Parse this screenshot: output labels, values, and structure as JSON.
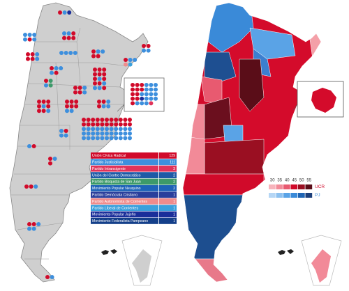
{
  "legend": {
    "parties": [
      {
        "name": "Unión Cívica Radical",
        "seats": 129,
        "color": "#d10a2a"
      },
      {
        "name": "Partido Justicialista",
        "seats": 111,
        "color": "#3d8fdd"
      },
      {
        "name": "Partido Intransigente",
        "seats": 3,
        "color": "#e0335a"
      },
      {
        "name": "Unión del Centro Democrático",
        "seats": 2,
        "color": "#1f5aa6"
      },
      {
        "name": "Partido Bloquista de San Juan",
        "seats": 2,
        "color": "#3d9a6a"
      },
      {
        "name": "Movimiento Popular Neuquino",
        "seats": 2,
        "color": "#1e63b8"
      },
      {
        "name": "Partido Demócrata Cristiano",
        "seats": 1,
        "color": "#2a3f9c"
      },
      {
        "name": "Partido Autonomista de Corrientes",
        "seats": 1,
        "color": "#f08c8c"
      },
      {
        "name": "Partido Liberal de Corrientes",
        "seats": 1,
        "color": "#3aa0dc"
      },
      {
        "name": "Movimiento Popular Jujeño",
        "seats": 1,
        "color": "#1a2e9a"
      },
      {
        "name": "Movimiento Federalista Pampeano",
        "seats": 1,
        "color": "#143f8a"
      }
    ]
  },
  "scale": {
    "ticks": [
      30,
      35,
      40,
      45,
      50,
      55
    ],
    "parties": [
      {
        "label": "UCR",
        "colors": [
          "#f7b3bb",
          "#f28a98",
          "#e85a70",
          "#d10a2a",
          "#9a0f22",
          "#5a0d18"
        ]
      },
      {
        "label": "PJ",
        "colors": [
          "#b5d6f5",
          "#8cc0ef",
          "#5aa3e6",
          "#3a8ad8",
          "#1f64b3",
          "#1c3f7a"
        ]
      }
    ]
  }
}
